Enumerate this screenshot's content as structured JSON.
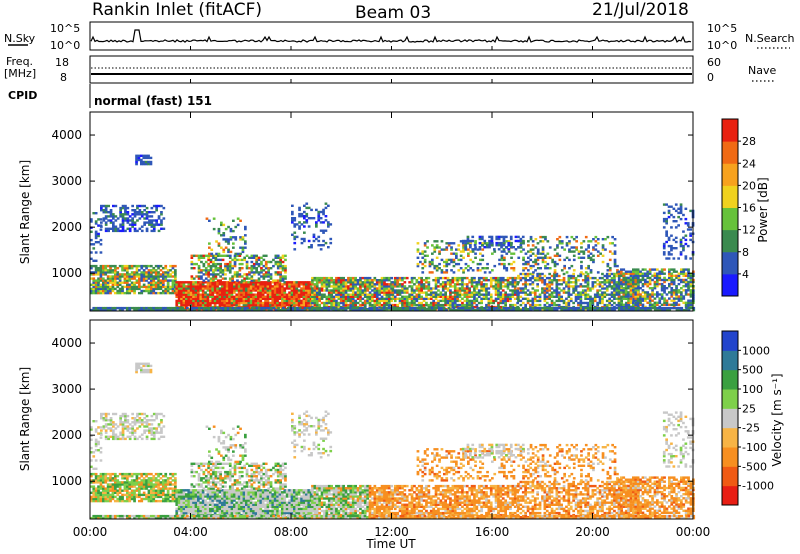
{
  "header": {
    "station": "Rankin Inlet (fitACF)",
    "beam": "Beam 03",
    "date": "21/Jul/2018"
  },
  "top_panels": {
    "nsky_label": "N.Sky",
    "nsky_ticks": [
      "10^5",
      "10^0"
    ],
    "nsearch_label": "N.Search",
    "nsearch_ticks": [
      "10^5",
      "10^0"
    ],
    "freq_label_line1": "Freq.",
    "freq_label_line2": "[MHz]",
    "freq_ticks": [
      "18",
      "8"
    ],
    "nave_label": "Nave",
    "nave_ticks": [
      "60",
      "0"
    ],
    "cpid_label": "CPID",
    "cpid_value": "normal (fast) 151"
  },
  "colors": {
    "power_scale": [
      "#1a1aff",
      "#2f57b8",
      "#3a8a4f",
      "#66c23a",
      "#f0d21e",
      "#f7a21e",
      "#f06a14",
      "#e82010"
    ],
    "velocity_scale": [
      "#e81e14",
      "#f05a14",
      "#f78f20",
      "#f7b445",
      "#c8c8c8",
      "#7ed04a",
      "#3aa040",
      "#2f7a98",
      "#2244cc"
    ]
  },
  "chart_data": [
    {
      "type": "heatmap",
      "name": "power",
      "ylabel": "Slant Range [km]",
      "xlabel": "Time UT",
      "x_ticks": [
        "00:00",
        "04:00",
        "08:00",
        "12:00",
        "16:00",
        "20:00",
        "00:00"
      ],
      "y_ticks": [
        "1000",
        "2000",
        "3000",
        "4000"
      ],
      "ylim": [
        180,
        4500
      ],
      "colorbar_label": "Power [dB]",
      "colorbar_ticks": [
        "4",
        "8",
        "12",
        "16",
        "20",
        "24",
        "28"
      ]
    },
    {
      "type": "heatmap",
      "name": "velocity",
      "ylabel": "Slant Range [km]",
      "xlabel": "Time UT",
      "x_ticks": [
        "00:00",
        "04:00",
        "08:00",
        "12:00",
        "16:00",
        "20:00",
        "00:00"
      ],
      "y_ticks": [
        "1000",
        "2000",
        "3000",
        "4000"
      ],
      "ylim": [
        180,
        4500
      ],
      "colorbar_label": "Velocity [m s⁻¹]",
      "colorbar_ticks": [
        "1000",
        "500",
        "100",
        "25",
        "-25",
        "-100",
        "-500",
        "-1000"
      ]
    }
  ]
}
